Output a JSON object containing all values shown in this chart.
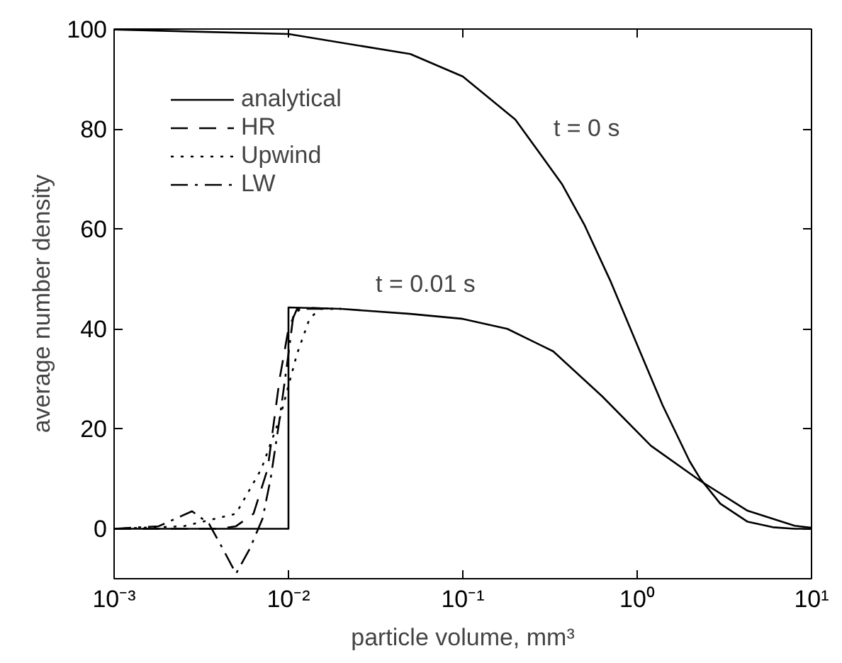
{
  "chart_data": {
    "type": "line",
    "xlabel": "particle volume, mm³",
    "ylabel": "average number density",
    "log": "x",
    "xlim": [
      0.001,
      10
    ],
    "ylim": [
      -10,
      100
    ],
    "xticks": [
      {
        "value": 0.001,
        "label": "10⁻³"
      },
      {
        "value": 0.01,
        "label": "10⁻²"
      },
      {
        "value": 0.1,
        "label": "10⁻¹"
      },
      {
        "value": 1,
        "label": "10⁰"
      },
      {
        "value": 10,
        "label": "10¹"
      }
    ],
    "yticks": [
      0,
      20,
      40,
      60,
      80,
      100
    ],
    "grid": false,
    "legend": "top left",
    "marker": "none",
    "annotations": [
      "t = 0 s",
      "t = 0.01 s"
    ],
    "series": [
      {
        "color": "#000000",
        "line_style": "solid",
        "x": [
          0.001,
          0.01,
          0.05,
          0.1,
          0.2,
          0.37,
          0.5,
          0.7,
          1,
          1.4,
          2,
          2.3,
          3,
          4.3,
          6,
          8,
          10
        ],
        "values": [
          99.9,
          99,
          95,
          90.5,
          81.9,
          69,
          60.7,
          49.7,
          36.8,
          24.7,
          13.5,
          10,
          5,
          1.4,
          0.3,
          0,
          0
        ]
      },
      {
        "name": "analytical",
        "color": "#000000",
        "line_style": "solid",
        "x": [
          0.001,
          0.01,
          0.01,
          0.02,
          0.05,
          0.1,
          0.18,
          0.33,
          0.63,
          1.2,
          2.3,
          4.3,
          8,
          10
        ],
        "values": [
          0,
          0,
          44.3,
          44,
          43,
          42,
          40,
          35.5,
          26.5,
          16.6,
          9.6,
          3.6,
          0.6,
          0.2
        ]
      },
      {
        "name": "HR",
        "color": "#000000",
        "line_style": "dashed",
        "x": [
          0.001,
          0.004,
          0.005,
          0.0063,
          0.0076,
          0.0089,
          0.01,
          0.0112,
          0.0126,
          0.02
        ],
        "values": [
          0,
          0,
          0.5,
          3,
          12,
          30,
          40,
          44,
          44.2,
          44
        ]
      },
      {
        "name": "Upwind",
        "color": "#000000",
        "line_style": "dotted",
        "x": [
          0.001,
          0.0025,
          0.005,
          0.007,
          0.0089,
          0.0112,
          0.0132,
          0.0151,
          0.02
        ],
        "values": [
          0,
          0.5,
          3,
          12,
          22,
          35,
          42,
          44,
          44
        ]
      },
      {
        "name": "LW",
        "color": "#000000",
        "line_style": "dashdot",
        "x": [
          0.001,
          0.0018,
          0.0028,
          0.0035,
          0.0042,
          0.005,
          0.006,
          0.0071,
          0.0079,
          0.0089,
          0.01,
          0.0107,
          0.0118,
          0.02
        ],
        "values": [
          0,
          0.5,
          3.5,
          1,
          -4,
          -9,
          -4,
          2,
          10,
          22,
          35,
          43,
          44,
          44
        ]
      }
    ]
  }
}
